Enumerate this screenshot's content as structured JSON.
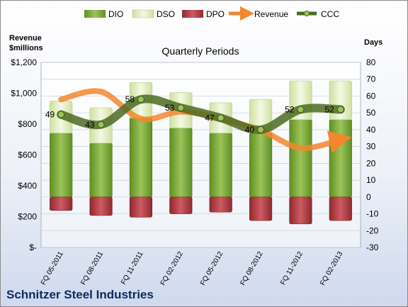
{
  "chart_data": {
    "type": "bar",
    "title": "Quarterly Periods",
    "company": "Schnitzer Steel Industries",
    "left_axis_title": "Revenue $millions",
    "right_axis_title": "Days",
    "categories": [
      "FQ 05-2011",
      "FQ 08-2011",
      "FQ 11-2011",
      "FQ 02-2012",
      "FQ 05-2012",
      "FQ 08-2012",
      "FQ 11-2012",
      "FQ 02-2013"
    ],
    "left_axis": {
      "range": [
        0,
        1200
      ],
      "ticks": [
        "$-",
        "$200",
        "$400",
        "$600",
        "$800",
        "$1,000",
        "$1,200"
      ]
    },
    "right_axis": {
      "range": [
        -30,
        80
      ],
      "ticks": [
        "-30",
        "-20",
        "-10",
        "0",
        "10",
        "20",
        "30",
        "40",
        "50",
        "60",
        "70",
        "80"
      ]
    },
    "legend_position": "top",
    "series": [
      {
        "name": "DIO",
        "type": "stacked-bar",
        "axis": "days",
        "color": "#7fae3a",
        "values": [
          38,
          32,
          47,
          41,
          38,
          38,
          46,
          46
        ]
      },
      {
        "name": "DSO",
        "type": "stacked-bar",
        "axis": "days",
        "color": "#e3efc2",
        "values": [
          19,
          21,
          21,
          21,
          18,
          20,
          23,
          23
        ]
      },
      {
        "name": "DPO",
        "type": "stacked-bar",
        "axis": "days",
        "color": "#c0474f",
        "values": [
          -8,
          -11,
          -12,
          -10,
          -9,
          -14,
          -16,
          -14
        ]
      },
      {
        "name": "Revenue",
        "type": "line",
        "axis": "revenue",
        "color": "#f4862e",
        "values": [
          960,
          1010,
          835,
          880,
          835,
          760,
          645,
          700
        ]
      },
      {
        "name": "CCC",
        "type": "line",
        "axis": "days",
        "color": "#4c6b22",
        "values": [
          49,
          43,
          58,
          53,
          47,
          40,
          52,
          52
        ]
      }
    ],
    "ccc_labels": [
      "49",
      "43",
      "58",
      "53",
      "47",
      "40",
      "52",
      "52"
    ],
    "gridlines": true
  }
}
